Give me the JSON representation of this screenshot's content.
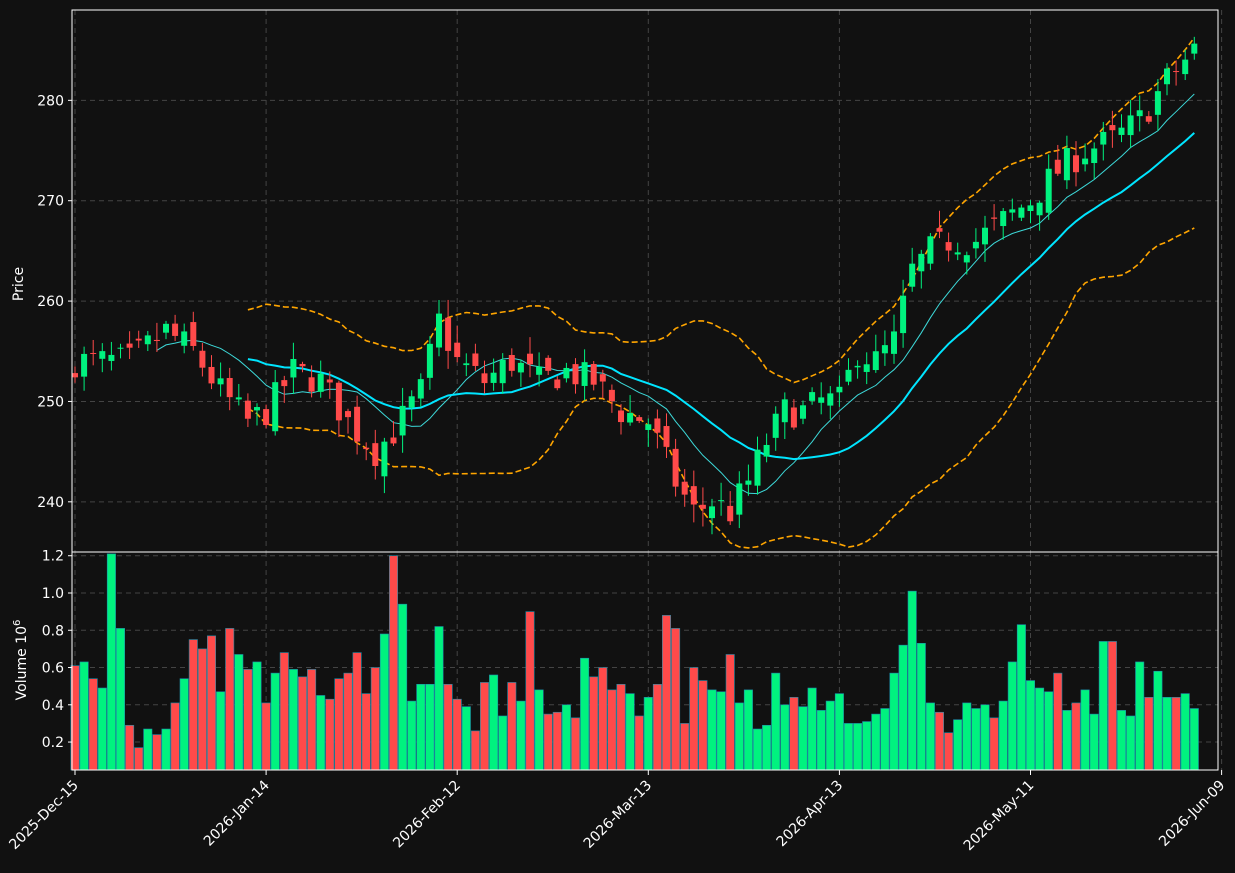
{
  "chart_data": {
    "type": "candlestick",
    "theme": {
      "background": "#111111",
      "axes_edge": "#ffffff",
      "grid": "#444444",
      "up": "#00f27f",
      "down": "#ff4a4a",
      "wick_up": "#00f27f",
      "wick_down": "#ff4a4a",
      "ma_short": "#3dd9d9",
      "ma_long": "#00e5ff",
      "bollinger": "#ffa500"
    },
    "price_panel": {
      "ylabel": "Price",
      "ylim": [
        235,
        289
      ],
      "yticks": [
        240,
        250,
        260,
        270,
        280
      ],
      "grid": true
    },
    "volume_panel": {
      "ylabel": "Volume",
      "exponent_label": "10",
      "exponent_power": "6",
      "ylim": [
        0.05,
        1.22
      ],
      "yticks": [
        0.2,
        0.4,
        0.6,
        0.8,
        1.0,
        1.2
      ],
      "ytick_labels": [
        "0.2",
        "0.4",
        "0.6",
        "0.8",
        "1.0",
        "1.2"
      ],
      "grid": true
    },
    "x_ticks": [
      {
        "index": 0,
        "label": "2025-Dec-15"
      },
      {
        "index": 21,
        "label": "2026-Jan-14"
      },
      {
        "index": 42,
        "label": "2026-Feb-12"
      },
      {
        "index": 63,
        "label": "2026-Mar-13"
      },
      {
        "index": 84,
        "label": "2026-Apr-13"
      },
      {
        "index": 105,
        "label": "2026-May-11"
      },
      {
        "index": 126,
        "label": "2026-Jun-09"
      }
    ],
    "volume": [
      0.61,
      0.63,
      0.54,
      0.49,
      1.21,
      0.81,
      0.29,
      0.17,
      0.27,
      0.24,
      0.27,
      0.41,
      0.54,
      0.75,
      0.7,
      0.77,
      0.47,
      0.81,
      0.67,
      0.59,
      0.63,
      0.41,
      0.57,
      0.68,
      0.59,
      0.55,
      0.59,
      0.45,
      0.43,
      0.54,
      0.57,
      0.68,
      0.46,
      0.6,
      0.78,
      1.2,
      0.94,
      0.42,
      0.51,
      0.51,
      0.82,
      0.51,
      0.43,
      0.39,
      0.26,
      0.52,
      0.56,
      0.34,
      0.52,
      0.42,
      0.9,
      0.48,
      0.35,
      0.36,
      0.4,
      0.33,
      0.65,
      0.55,
      0.6,
      0.48,
      0.51,
      0.46,
      0.34,
      0.44,
      0.51,
      0.88,
      0.81,
      0.3,
      0.6,
      0.53,
      0.48,
      0.47,
      0.67,
      0.41,
      0.48,
      0.27,
      0.29,
      0.57,
      0.4,
      0.44,
      0.39,
      0.49,
      0.37,
      0.42,
      0.46,
      0.3,
      0.3,
      0.31,
      0.35,
      0.38,
      0.57,
      0.72,
      1.01,
      0.73,
      0.41,
      0.36,
      0.25,
      0.32,
      0.41,
      0.38,
      0.4,
      0.33,
      0.42,
      0.63,
      0.83,
      0.53,
      0.49,
      0.47,
      0.57,
      0.37,
      0.41,
      0.48,
      0.35,
      0.74,
      0.74,
      0.37,
      0.34,
      0.63,
      0.44,
      0.58,
      0.44,
      0.44,
      0.46,
      0.38
    ]
  }
}
